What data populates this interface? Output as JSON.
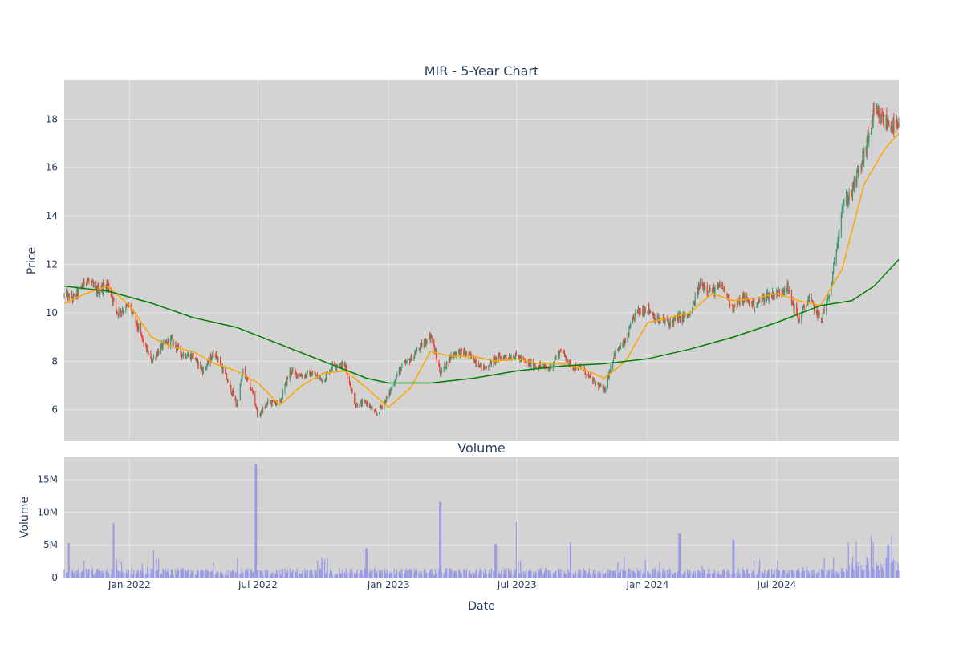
{
  "colors": {
    "background": "#ffffff",
    "plot_bg": "#d3d3d3",
    "grid": "#e8e8e8",
    "text": "#2a3f5f",
    "candle_up": "#3d9970",
    "candle_down": "#ef4136",
    "ma_short": "#ffa500",
    "ma_long": "#008000",
    "volume": "#9a9ae6"
  },
  "chart_data": [
    {
      "type": "candlestick",
      "title": "MIR - 5-Year Chart",
      "ylabel": "Price",
      "xlim": [
        "2021-10-01",
        "2024-12-20"
      ],
      "ylim": [
        4.7,
        19.6
      ],
      "x_ticks": [
        {
          "date": "2022-01-01",
          "label": "Jan 2022"
        },
        {
          "date": "2022-07-01",
          "label": "Jul 2022"
        },
        {
          "date": "2023-01-01",
          "label": "Jan 2023"
        },
        {
          "date": "2023-07-01",
          "label": "Jul 2023"
        },
        {
          "date": "2024-01-01",
          "label": "Jan 2024"
        },
        {
          "date": "2024-07-01",
          "label": "Jul 2024"
        }
      ],
      "y_ticks": [
        6,
        8,
        10,
        12,
        14,
        16,
        18
      ],
      "grid": true,
      "legend": "none",
      "series": [
        {
          "kind": "close",
          "points": [
            [
              "2021-10-01",
              10.7
            ],
            [
              "2021-10-15",
              10.6
            ],
            [
              "2021-11-01",
              11.4
            ],
            [
              "2021-11-15",
              10.9
            ],
            [
              "2021-12-01",
              11.2
            ],
            [
              "2021-12-15",
              10.0
            ],
            [
              "2022-01-01",
              10.3
            ],
            [
              "2022-01-15",
              9.2
            ],
            [
              "2022-02-01",
              8.0
            ],
            [
              "2022-02-15",
              8.6
            ],
            [
              "2022-03-01",
              8.9
            ],
            [
              "2022-03-15",
              8.3
            ],
            [
              "2022-04-01",
              8.2
            ],
            [
              "2022-04-15",
              7.6
            ],
            [
              "2022-05-01",
              8.4
            ],
            [
              "2022-05-15",
              7.5
            ],
            [
              "2022-06-01",
              6.2
            ],
            [
              "2022-06-10",
              7.6
            ],
            [
              "2022-06-25",
              6.6
            ],
            [
              "2022-07-01",
              5.7
            ],
            [
              "2022-07-15",
              6.3
            ],
            [
              "2022-08-01",
              6.3
            ],
            [
              "2022-08-15",
              7.6
            ],
            [
              "2022-09-01",
              7.4
            ],
            [
              "2022-09-15",
              7.5
            ],
            [
              "2022-10-01",
              7.2
            ],
            [
              "2022-10-15",
              7.9
            ],
            [
              "2022-11-01",
              7.8
            ],
            [
              "2022-11-15",
              6.2
            ],
            [
              "2022-12-01",
              6.3
            ],
            [
              "2022-12-15",
              5.8
            ],
            [
              "2023-01-01",
              6.6
            ],
            [
              "2023-01-15",
              7.6
            ],
            [
              "2023-02-01",
              8.1
            ],
            [
              "2023-02-15",
              8.6
            ],
            [
              "2023-03-01",
              9.1
            ],
            [
              "2023-03-15",
              7.5
            ],
            [
              "2023-04-01",
              8.3
            ],
            [
              "2023-04-15",
              8.4
            ],
            [
              "2023-05-01",
              8.1
            ],
            [
              "2023-05-15",
              7.7
            ],
            [
              "2023-06-01",
              8.1
            ],
            [
              "2023-06-15",
              8.2
            ],
            [
              "2023-07-01",
              8.2
            ],
            [
              "2023-07-15",
              7.9
            ],
            [
              "2023-08-01",
              7.8
            ],
            [
              "2023-08-15",
              7.7
            ],
            [
              "2023-09-01",
              8.5
            ],
            [
              "2023-09-15",
              7.8
            ],
            [
              "2023-10-01",
              7.7
            ],
            [
              "2023-10-15",
              7.2
            ],
            [
              "2023-11-01",
              6.8
            ],
            [
              "2023-11-15",
              8.3
            ],
            [
              "2023-12-01",
              8.8
            ],
            [
              "2023-12-15",
              10.0
            ],
            [
              "2024-01-01",
              10.2
            ],
            [
              "2024-01-15",
              9.7
            ],
            [
              "2024-02-01",
              9.6
            ],
            [
              "2024-02-15",
              9.8
            ],
            [
              "2024-03-01",
              9.9
            ],
            [
              "2024-03-15",
              11.2
            ],
            [
              "2024-04-01",
              10.9
            ],
            [
              "2024-04-15",
              11.1
            ],
            [
              "2024-05-01",
              10.2
            ],
            [
              "2024-05-15",
              10.6
            ],
            [
              "2024-06-01",
              10.3
            ],
            [
              "2024-06-15",
              10.7
            ],
            [
              "2024-07-01",
              10.8
            ],
            [
              "2024-07-15",
              11.1
            ],
            [
              "2024-08-01",
              9.7
            ],
            [
              "2024-08-15",
              10.6
            ],
            [
              "2024-09-01",
              9.7
            ],
            [
              "2024-09-15",
              10.9
            ],
            [
              "2024-10-01",
              14.4
            ],
            [
              "2024-10-15",
              15.0
            ],
            [
              "2024-11-01",
              16.5
            ],
            [
              "2024-11-15",
              18.2
            ],
            [
              "2024-12-01",
              17.9
            ],
            [
              "2024-12-20",
              17.6
            ]
          ]
        },
        {
          "kind": "moving_average",
          "color_key": "ma_short",
          "points": [
            [
              "2021-10-01",
              10.4
            ],
            [
              "2021-11-01",
              10.8
            ],
            [
              "2021-12-01",
              11.1
            ],
            [
              "2022-01-01",
              10.3
            ],
            [
              "2022-02-01",
              9.0
            ],
            [
              "2022-03-01",
              8.6
            ],
            [
              "2022-04-01",
              8.4
            ],
            [
              "2022-05-01",
              7.9
            ],
            [
              "2022-06-01",
              7.6
            ],
            [
              "2022-07-01",
              7.1
            ],
            [
              "2022-08-01",
              6.2
            ],
            [
              "2022-09-01",
              7.0
            ],
            [
              "2022-10-01",
              7.5
            ],
            [
              "2022-11-01",
              7.6
            ],
            [
              "2022-12-01",
              6.9
            ],
            [
              "2023-01-01",
              6.1
            ],
            [
              "2023-02-01",
              6.9
            ],
            [
              "2023-03-01",
              8.4
            ],
            [
              "2023-04-01",
              8.2
            ],
            [
              "2023-05-01",
              8.2
            ],
            [
              "2023-06-01",
              8.0
            ],
            [
              "2023-07-01",
              8.1
            ],
            [
              "2023-08-01",
              7.9
            ],
            [
              "2023-09-01",
              7.9
            ],
            [
              "2023-10-01",
              7.7
            ],
            [
              "2023-11-01",
              7.3
            ],
            [
              "2023-12-01",
              8.0
            ],
            [
              "2024-01-01",
              9.6
            ],
            [
              "2024-02-01",
              9.8
            ],
            [
              "2024-03-01",
              10.0
            ],
            [
              "2024-04-01",
              10.8
            ],
            [
              "2024-05-01",
              10.5
            ],
            [
              "2024-06-01",
              10.6
            ],
            [
              "2024-07-01",
              10.8
            ],
            [
              "2024-08-01",
              10.5
            ],
            [
              "2024-09-01",
              10.3
            ],
            [
              "2024-10-01",
              11.8
            ],
            [
              "2024-11-01",
              15.3
            ],
            [
              "2024-12-01",
              16.8
            ],
            [
              "2024-12-20",
              17.4
            ]
          ]
        },
        {
          "kind": "moving_average",
          "color_key": "ma_long",
          "points": [
            [
              "2021-10-01",
              11.1
            ],
            [
              "2021-12-01",
              10.9
            ],
            [
              "2022-02-01",
              10.4
            ],
            [
              "2022-04-01",
              9.8
            ],
            [
              "2022-06-01",
              9.4
            ],
            [
              "2022-08-01",
              8.7
            ],
            [
              "2022-10-01",
              8.0
            ],
            [
              "2022-12-01",
              7.3
            ],
            [
              "2023-01-01",
              7.1
            ],
            [
              "2023-03-01",
              7.1
            ],
            [
              "2023-05-01",
              7.3
            ],
            [
              "2023-07-01",
              7.6
            ],
            [
              "2023-09-01",
              7.8
            ],
            [
              "2023-11-01",
              7.9
            ],
            [
              "2024-01-01",
              8.1
            ],
            [
              "2024-03-01",
              8.5
            ],
            [
              "2024-05-01",
              9.0
            ],
            [
              "2024-07-01",
              9.6
            ],
            [
              "2024-09-01",
              10.3
            ],
            [
              "2024-10-15",
              10.5
            ],
            [
              "2024-11-15",
              11.1
            ],
            [
              "2024-12-20",
              12.2
            ]
          ]
        }
      ]
    },
    {
      "type": "bar",
      "title": "Volume",
      "xlabel": "Date",
      "ylabel": "Volume",
      "xlim": [
        "2021-10-01",
        "2024-12-20"
      ],
      "ylim": [
        0,
        18400000
      ],
      "y_ticks": [
        {
          "value": 0,
          "label": "0"
        },
        {
          "value": 5000000,
          "label": "5M"
        },
        {
          "value": 10000000,
          "label": "10M"
        },
        {
          "value": 15000000,
          "label": "15M"
        }
      ],
      "grid": true,
      "spikes": [
        [
          "2021-10-08",
          5300000
        ],
        [
          "2021-12-10",
          8300000
        ],
        [
          "2022-02-05",
          4200000
        ],
        [
          "2022-06-28",
          17300000
        ],
        [
          "2022-12-01",
          4500000
        ],
        [
          "2023-03-15",
          11600000
        ],
        [
          "2023-06-01",
          5100000
        ],
        [
          "2023-07-01",
          8500000
        ],
        [
          "2023-09-15",
          5500000
        ],
        [
          "2024-02-15",
          6700000
        ],
        [
          "2024-05-01",
          5800000
        ],
        [
          "2024-10-20",
          5500000
        ],
        [
          "2024-11-10",
          6400000
        ],
        [
          "2024-12-05",
          5000000
        ]
      ],
      "base_level": 1000000
    }
  ]
}
